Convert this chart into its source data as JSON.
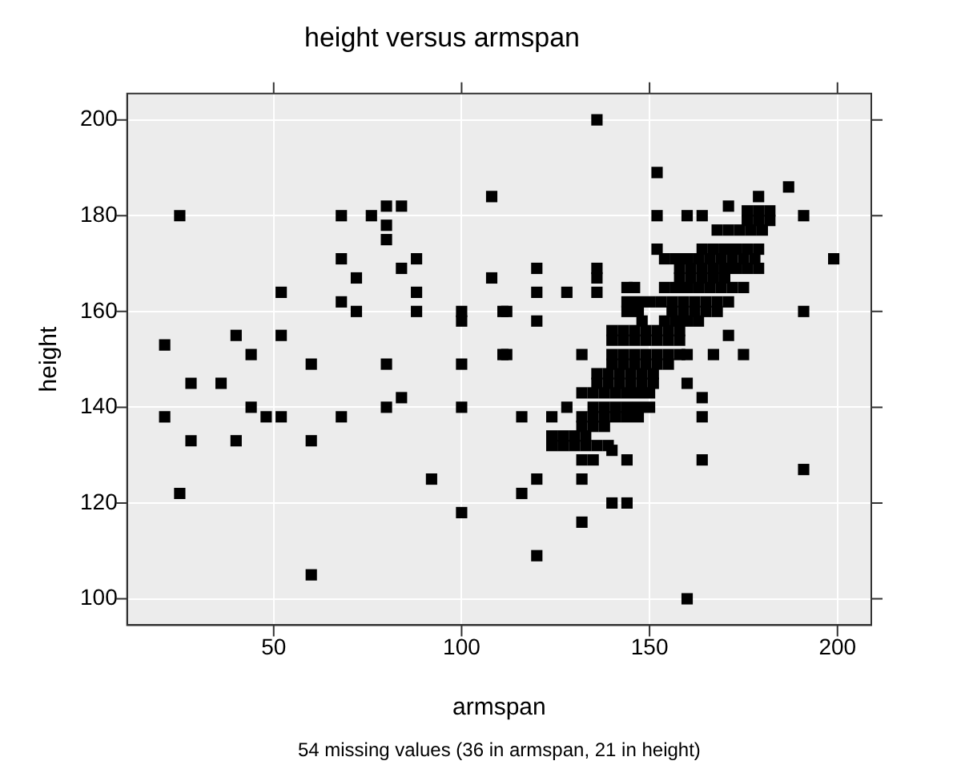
{
  "chart_data": {
    "type": "scatter",
    "title": "height versus armspan",
    "xlabel": "armspan",
    "ylabel": "height",
    "annotations": [
      "54 missing values (36 in armspan, 21 in height)"
    ],
    "xlim": [
      11,
      209
    ],
    "ylim": [
      94.5,
      205.5
    ],
    "xticks": [
      50,
      100,
      150,
      200
    ],
    "yticks": [
      100,
      120,
      140,
      160,
      180,
      200
    ],
    "grid": true,
    "legend": false,
    "marker": "square",
    "series": [
      {
        "color": "#000000",
        "x": [
          25,
          68,
          76,
          80,
          84,
          80,
          80,
          68,
          88,
          84,
          72,
          108,
          108,
          52,
          88,
          68,
          72,
          88,
          100,
          100,
          111,
          40,
          52,
          21,
          44,
          60,
          80,
          100,
          111,
          28,
          36,
          80,
          84,
          100,
          44,
          21,
          48,
          52,
          68,
          28,
          40,
          60,
          25,
          92,
          100,
          60,
          136,
          152,
          187,
          179,
          152,
          160,
          164,
          171,
          191,
          199,
          120,
          120,
          128,
          136,
          136,
          136,
          112,
          120,
          191,
          112,
          132,
          167,
          175,
          171,
          160,
          164,
          164,
          164,
          191,
          116,
          124,
          128,
          144,
          140,
          120,
          116,
          132,
          140,
          144,
          132,
          120,
          160,
          176,
          179,
          182,
          176,
          179,
          182,
          168,
          171,
          174,
          177,
          180,
          152,
          164,
          167,
          170,
          173,
          176,
          179,
          154,
          157,
          160,
          163,
          166,
          169,
          172,
          175,
          178,
          158,
          161,
          164,
          167,
          170,
          173,
          176,
          179,
          158,
          161,
          164,
          167,
          170,
          144,
          146,
          154,
          157,
          160,
          163,
          166,
          169,
          172,
          175,
          144,
          147,
          150,
          153,
          156,
          159,
          162,
          165,
          168,
          171,
          144,
          147,
          156,
          159,
          162,
          165,
          168,
          148,
          154,
          157,
          160,
          163,
          140,
          143,
          146,
          149,
          152,
          155,
          158,
          140,
          143,
          146,
          149,
          152,
          155,
          158,
          140,
          143,
          146,
          149,
          152,
          155,
          158,
          160,
          140,
          143,
          146,
          149,
          152,
          155,
          136,
          139,
          142,
          145,
          148,
          151,
          136,
          139,
          142,
          145,
          148,
          151,
          132,
          135,
          138,
          141,
          144,
          147,
          150,
          135,
          138,
          141,
          144,
          147,
          150,
          132,
          135,
          138,
          141,
          144,
          147,
          132,
          135,
          138,
          124,
          127,
          130,
          133,
          124,
          127,
          130,
          133,
          136,
          139,
          132,
          135
        ],
        "values": [
          180,
          180,
          180,
          182,
          182,
          178,
          175,
          171,
          171,
          169,
          167,
          184,
          167,
          164,
          164,
          162,
          160,
          160,
          160,
          158,
          160,
          155,
          155,
          153,
          151,
          149,
          149,
          149,
          151,
          145,
          145,
          140,
          142,
          140,
          140,
          138,
          138,
          138,
          138,
          133,
          133,
          133,
          122,
          125,
          118,
          105,
          200,
          189,
          186,
          184,
          180,
          180,
          180,
          182,
          180,
          171,
          169,
          164,
          164,
          169,
          167,
          164,
          160,
          158,
          160,
          151,
          151,
          151,
          151,
          155,
          145,
          142,
          138,
          129,
          127,
          138,
          138,
          140,
          129,
          131,
          125,
          122,
          125,
          120,
          120,
          116,
          109,
          100,
          181,
          181,
          181,
          179,
          179,
          179,
          177,
          177,
          177,
          177,
          177,
          173,
          173,
          173,
          173,
          173,
          173,
          173,
          171,
          171,
          171,
          171,
          171,
          171,
          171,
          171,
          171,
          169,
          169,
          169,
          169,
          169,
          169,
          169,
          169,
          167,
          167,
          167,
          167,
          167,
          165,
          165,
          165,
          165,
          165,
          165,
          165,
          165,
          165,
          165,
          162,
          162,
          162,
          162,
          162,
          162,
          162,
          162,
          162,
          162,
          160,
          160,
          160,
          160,
          160,
          160,
          160,
          158,
          158,
          158,
          158,
          158,
          156,
          156,
          156,
          156,
          156,
          156,
          156,
          154,
          154,
          154,
          154,
          154,
          154,
          154,
          151,
          151,
          151,
          151,
          151,
          151,
          151,
          151,
          149,
          149,
          149,
          149,
          149,
          149,
          147,
          147,
          147,
          147,
          147,
          147,
          145,
          145,
          145,
          145,
          145,
          145,
          143,
          143,
          143,
          143,
          143,
          143,
          143,
          140,
          140,
          140,
          140,
          140,
          140,
          138,
          138,
          138,
          138,
          138,
          138,
          136,
          136,
          136,
          134,
          134,
          134,
          134,
          132,
          132,
          132,
          132,
          132,
          132,
          129,
          129
        ]
      }
    ]
  }
}
